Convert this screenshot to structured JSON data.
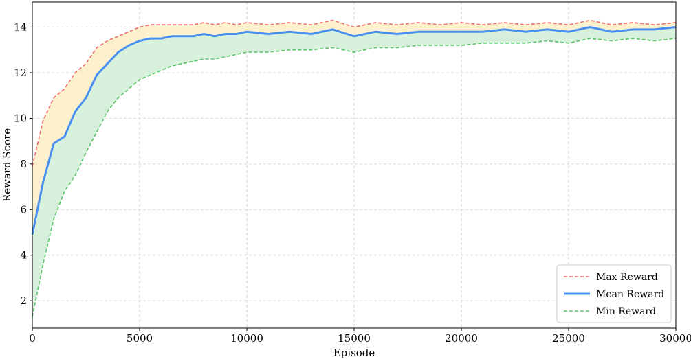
{
  "chart_data": {
    "type": "line",
    "title": "",
    "xlabel": "Episode",
    "ylabel": "Reward Score",
    "xlim": [
      0,
      30000
    ],
    "ylim": [
      0.8,
      15.1
    ],
    "xticks": [
      0,
      5000,
      10000,
      15000,
      20000,
      25000,
      30000
    ],
    "yticks": [
      2,
      4,
      6,
      8,
      10,
      12,
      14
    ],
    "grid": true,
    "legend_position": "bottom-right",
    "x": [
      0,
      500,
      1000,
      1500,
      2000,
      2500,
      3000,
      3500,
      4000,
      4500,
      5000,
      5500,
      6000,
      6500,
      7000,
      7500,
      8000,
      8500,
      9000,
      9500,
      10000,
      11000,
      12000,
      13000,
      14000,
      15000,
      16000,
      17000,
      18000,
      19000,
      20000,
      21000,
      22000,
      23000,
      24000,
      25000,
      26000,
      27000,
      28000,
      29000,
      30000
    ],
    "series": [
      {
        "name": "Max Reward",
        "color": "#ef6b6b",
        "style": "dashed",
        "values": [
          7.9,
          9.9,
          10.9,
          11.3,
          12.0,
          12.4,
          13.1,
          13.4,
          13.6,
          13.8,
          14.0,
          14.1,
          14.1,
          14.1,
          14.1,
          14.1,
          14.2,
          14.1,
          14.2,
          14.1,
          14.2,
          14.1,
          14.2,
          14.1,
          14.3,
          14.0,
          14.2,
          14.1,
          14.2,
          14.1,
          14.2,
          14.1,
          14.2,
          14.1,
          14.2,
          14.1,
          14.3,
          14.1,
          14.2,
          14.1,
          14.2
        ]
      },
      {
        "name": "Mean Reward",
        "color": "#4a90f0",
        "style": "solid",
        "values": [
          4.9,
          7.2,
          8.9,
          9.2,
          10.3,
          10.9,
          11.9,
          12.4,
          12.9,
          13.2,
          13.4,
          13.5,
          13.5,
          13.6,
          13.6,
          13.6,
          13.7,
          13.6,
          13.7,
          13.7,
          13.8,
          13.7,
          13.8,
          13.7,
          13.9,
          13.6,
          13.8,
          13.7,
          13.8,
          13.8,
          13.8,
          13.8,
          13.9,
          13.8,
          13.9,
          13.8,
          14.0,
          13.8,
          13.9,
          13.9,
          14.0
        ]
      },
      {
        "name": "Min Reward",
        "color": "#5cc26a",
        "style": "dashed",
        "values": [
          1.3,
          3.6,
          5.6,
          6.8,
          7.5,
          8.5,
          9.4,
          10.3,
          10.9,
          11.3,
          11.7,
          11.9,
          12.1,
          12.3,
          12.4,
          12.5,
          12.6,
          12.6,
          12.7,
          12.8,
          12.9,
          12.9,
          13.0,
          13.0,
          13.1,
          12.9,
          13.1,
          13.1,
          13.2,
          13.2,
          13.2,
          13.3,
          13.3,
          13.3,
          13.4,
          13.3,
          13.5,
          13.4,
          13.5,
          13.4,
          13.5
        ]
      }
    ],
    "fills": [
      {
        "between": [
          "Mean Reward",
          "Max Reward"
        ],
        "color": "#fdf0c8"
      },
      {
        "between": [
          "Min Reward",
          "Mean Reward"
        ],
        "color": "#d4efd8"
      }
    ]
  }
}
